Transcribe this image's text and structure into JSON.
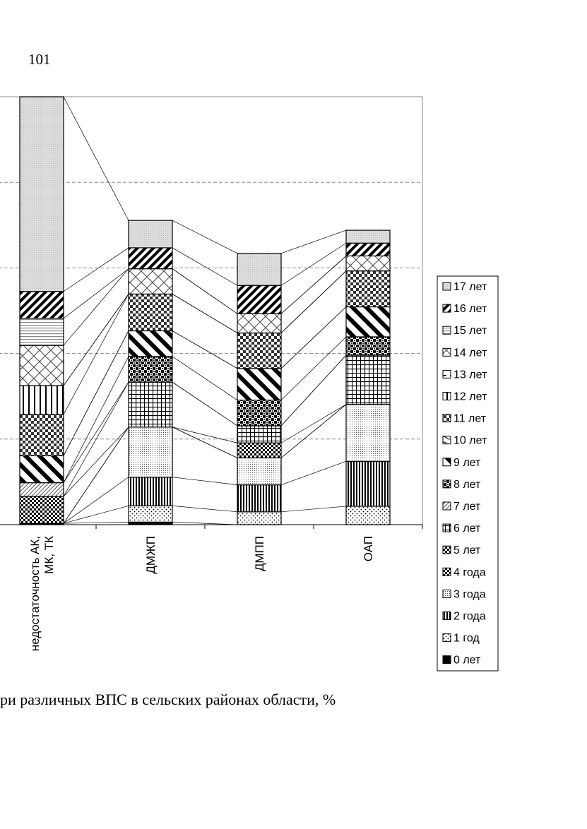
{
  "page": {
    "number": "101",
    "caption": "ри различных ВПС в сельских районах области, %"
  },
  "chart_data": {
    "type": "bar",
    "stacked": true,
    "percent_stacked": true,
    "ylim": [
      0,
      100
    ],
    "grid": true,
    "legend_position": "right",
    "categories": [
      "недостаточность АК, МК, ТК",
      "ДМЖП",
      "ДМПП",
      "ОАП"
    ],
    "category_lines": [
      [
        "недостаточность АК,",
        "МК, ТК"
      ],
      [
        "ДМЖП"
      ],
      [
        "ДМПП"
      ],
      [
        "ОАП"
      ]
    ],
    "series": [
      {
        "name": "0 лет",
        "values": [
          0.3,
          0.6,
          0.0,
          0.0
        ]
      },
      {
        "name": "1 год",
        "values": [
          0.0,
          3.8,
          3.0,
          4.3
        ]
      },
      {
        "name": "2 года",
        "values": [
          0.0,
          6.7,
          6.3,
          10.5
        ]
      },
      {
        "name": "3 года",
        "values": [
          0.0,
          11.7,
          6.3,
          13.3
        ]
      },
      {
        "name": "4 года",
        "values": [
          0.0,
          0.0,
          0.0,
          0.0
        ]
      },
      {
        "name": "5 лет",
        "values": [
          6.3,
          0.0,
          3.5,
          0.0
        ]
      },
      {
        "name": "6 лет",
        "values": [
          0.0,
          10.5,
          4.0,
          11.5
        ]
      },
      {
        "name": "7 лет",
        "values": [
          3.2,
          0.0,
          0.0,
          0.0
        ]
      },
      {
        "name": "8 лет",
        "values": [
          0.0,
          6.0,
          6.0,
          4.3
        ]
      },
      {
        "name": "9 лет",
        "values": [
          6.3,
          6.0,
          7.4,
          7.0
        ]
      },
      {
        "name": "10 лет",
        "values": [
          0.0,
          0.0,
          0.0,
          0.0
        ]
      },
      {
        "name": "11 лет",
        "values": [
          9.7,
          8.6,
          8.3,
          8.4
        ]
      },
      {
        "name": "12 лет",
        "values": [
          6.7,
          0.0,
          0.0,
          0.0
        ]
      },
      {
        "name": "13 лет",
        "values": [
          0.0,
          0.0,
          0.0,
          0.0
        ]
      },
      {
        "name": "14 лет",
        "values": [
          9.4,
          5.9,
          4.5,
          3.5
        ]
      },
      {
        "name": "15 лет",
        "values": [
          6.3,
          0.0,
          0.0,
          0.0
        ]
      },
      {
        "name": "16 лет",
        "values": [
          6.3,
          4.9,
          6.6,
          3.0
        ]
      },
      {
        "name": "17 лет",
        "values": [
          45.5,
          6.4,
          7.5,
          3.0
        ]
      }
    ],
    "legend_order": [
      "17 лет",
      "16 лет",
      "15 лет",
      "14 лет",
      "13 лет",
      "12 лет",
      "11 лет",
      "10 лет",
      "9 лет",
      "8 лет",
      "7 лет",
      "6 лет",
      "5 лет",
      "4 года",
      "3 года",
      "2 года",
      "1 год",
      "0 лет"
    ]
  }
}
